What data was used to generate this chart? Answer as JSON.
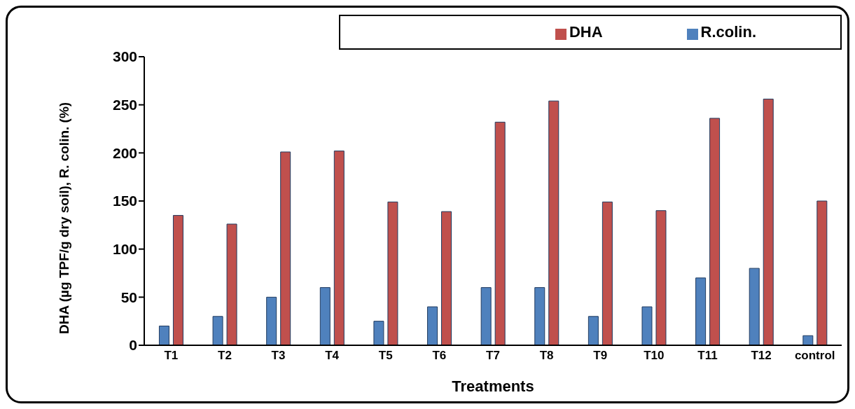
{
  "chart_data": {
    "type": "bar",
    "xlabel": "Treatments",
    "ylabel": "DHA (µg TPF/g dry soil), R. colin. (%)",
    "categories": [
      "T1",
      "T2",
      "T3",
      "T4",
      "T5",
      "T6",
      "T7",
      "T8",
      "T9",
      "T10",
      "T11",
      "T12",
      "control"
    ],
    "series": [
      {
        "name": "R.colin.",
        "color": "#4f81bd",
        "values": [
          20,
          30,
          50,
          60,
          25,
          40,
          60,
          60,
          30,
          40,
          70,
          80,
          10
        ]
      },
      {
        "name": "DHA",
        "color": "#c0504d",
        "values": [
          135,
          126,
          201,
          202,
          149,
          139,
          232,
          254,
          149,
          140,
          236,
          256,
          150
        ]
      }
    ],
    "ylim": [
      0,
      300
    ],
    "yticks": [
      0,
      50,
      100,
      150,
      200,
      250,
      300
    ],
    "grid": false,
    "legend": "top right"
  }
}
